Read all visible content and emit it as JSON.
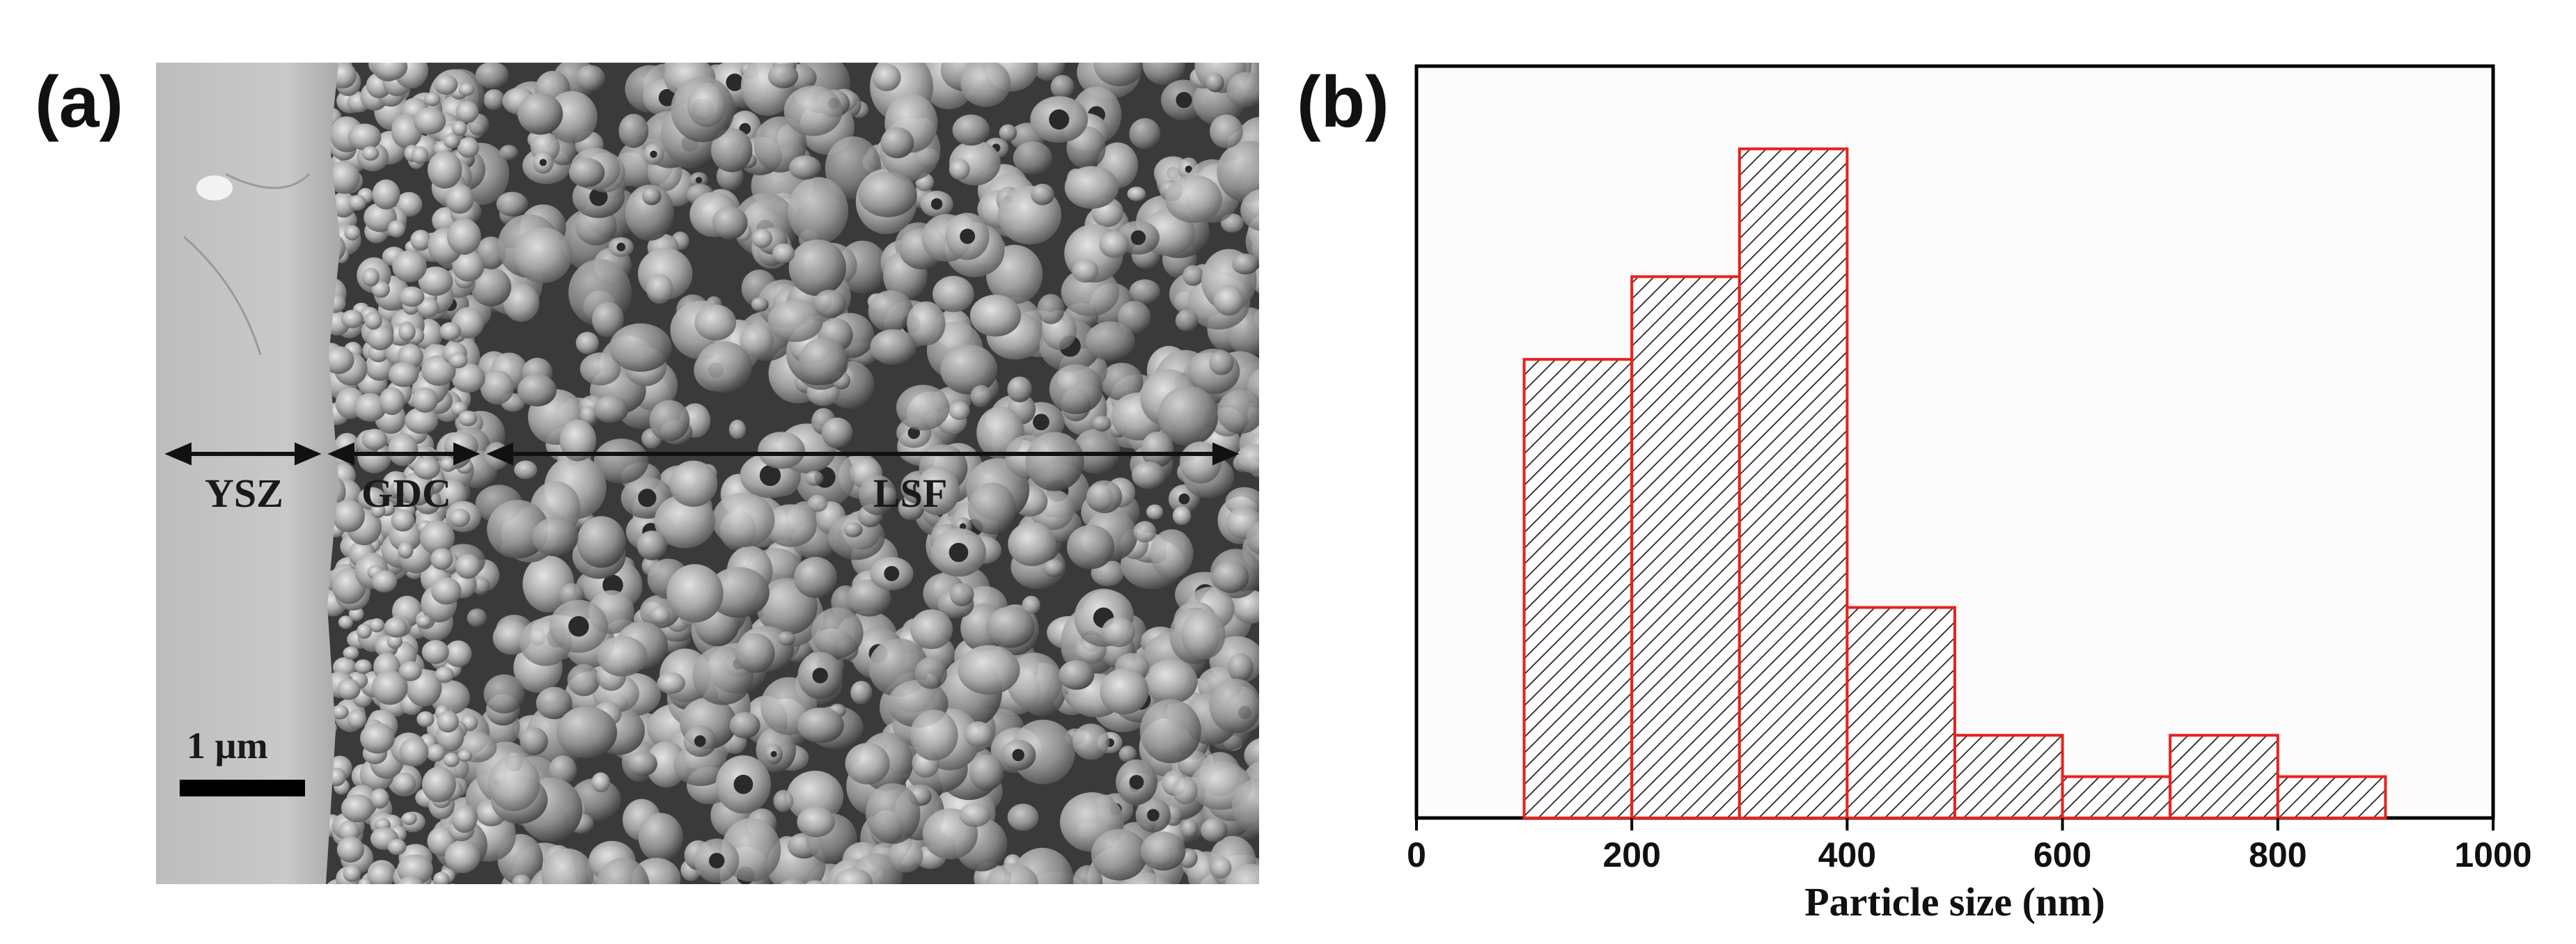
{
  "panels": {
    "a_label": "(a)",
    "b_label": "(b)"
  },
  "sem": {
    "layers": [
      "YSZ",
      "GDC",
      "LSF"
    ],
    "scale_bar": "1 µm"
  },
  "chart_data": {
    "type": "bar",
    "title": "",
    "xlabel": "Particle size (nm)",
    "ylabel": "",
    "xlim": [
      0,
      1000
    ],
    "ylim": [
      0,
      100
    ],
    "xticks": [
      "0",
      "200",
      "400",
      "600",
      "800",
      "1000"
    ],
    "bins": [
      {
        "start": 100,
        "end": 200,
        "value": 61
      },
      {
        "start": 200,
        "end": 300,
        "value": 72
      },
      {
        "start": 300,
        "end": 400,
        "value": 89
      },
      {
        "start": 400,
        "end": 500,
        "value": 28
      },
      {
        "start": 500,
        "end": 600,
        "value": 11
      },
      {
        "start": 600,
        "end": 700,
        "value": 5.5
      },
      {
        "start": 700,
        "end": 800,
        "value": 11
      },
      {
        "start": 800,
        "end": 900,
        "value": 5.5
      }
    ],
    "bar_edge_color": "#e8221c",
    "bar_fill": "hatched",
    "grid": false
  }
}
